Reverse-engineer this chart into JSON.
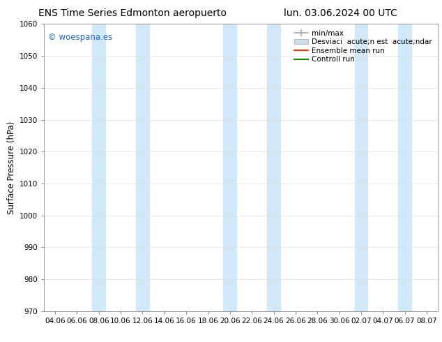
{
  "title_left": "ENS Time Series Edmonton aeropuerto",
  "title_right": "lun. 03.06.2024 00 UTC",
  "ylabel": "Surface Pressure (hPa)",
  "ylim": [
    970,
    1060
  ],
  "yticks": [
    970,
    980,
    990,
    1000,
    1010,
    1020,
    1030,
    1040,
    1050,
    1060
  ],
  "xtick_labels": [
    "04.06",
    "06.06",
    "08.06",
    "10.06",
    "12.06",
    "14.06",
    "16.06",
    "18.06",
    "20.06",
    "22.06",
    "24.06",
    "26.06",
    "28.06",
    "30.06",
    "02.07",
    "04.07",
    "06.07",
    "08.07"
  ],
  "watermark": "© woespana.es",
  "watermark_color": "#1a66cc",
  "bg_color": "#ffffff",
  "plot_bg_color": "#ffffff",
  "band_color": "#d0e8f8",
  "band_indices": [
    2,
    4,
    8,
    10,
    14,
    16
  ],
  "legend_label_minmax": "min/max",
  "legend_label_std": "Desviaci  acute;n est  acute;ndar",
  "legend_label_ens": "Ensemble mean run",
  "legend_label_ctrl": "Controll run",
  "color_minmax": "#aaaaaa",
  "color_std": "#ccdded",
  "color_ens": "#ff3300",
  "color_ctrl": "#228800",
  "font_size_title": 10,
  "font_size_tick": 7.5,
  "font_size_legend": 7.5,
  "font_size_ylabel": 8.5,
  "font_size_watermark": 8.5
}
